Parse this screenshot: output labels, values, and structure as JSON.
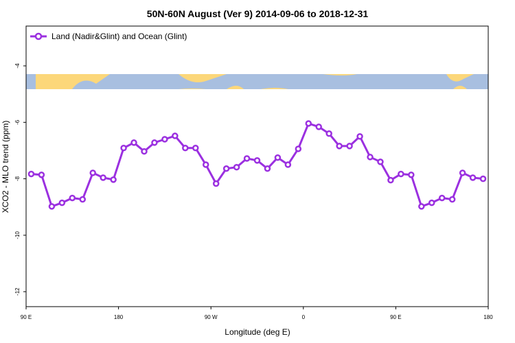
{
  "chart_data": {
    "type": "line",
    "title": "50N-60N August (Ver 9)   2014-09-06 to 2018-12-31",
    "x_label": "Longitude (deg E)",
    "y_label": "XCO2 - MLO trend (ppm)",
    "x": [
      95,
      105,
      115,
      125,
      135,
      145,
      155,
      165,
      175,
      185,
      195,
      205,
      215,
      225,
      235,
      245,
      255,
      265,
      275,
      285,
      295,
      305,
      315,
      325,
      335,
      345,
      355,
      365,
      375,
      385,
      395,
      405,
      415,
      425,
      435,
      445,
      455,
      465,
      475,
      485,
      495,
      505,
      515,
      525,
      535
    ],
    "series": [
      {
        "name": "Land (Nadir&Glint) and Ocean (Glint)",
        "color": "#9b30e0",
        "values": [
          -7.83,
          -7.86,
          -8.98,
          -8.85,
          -8.68,
          -8.73,
          -7.79,
          -7.96,
          -8.03,
          -6.91,
          -6.72,
          -7.03,
          -6.72,
          -6.6,
          -6.48,
          -6.91,
          -6.91,
          -7.5,
          -8.17,
          -7.64,
          -7.59,
          -7.28,
          -7.35,
          -7.64,
          -7.25,
          -7.5,
          -6.94,
          -6.04,
          -6.16,
          -6.4,
          -6.84,
          -6.84,
          -6.5,
          -7.23,
          -7.4,
          -8.05,
          -7.83,
          -7.86,
          -8.98,
          -8.85,
          -8.68,
          -8.73,
          -7.79,
          -7.96,
          -8.0
        ]
      }
    ],
    "xlim": [
      90,
      540
    ],
    "xticks": [
      {
        "value": 90,
        "label": "90 E"
      },
      180,
      {
        "value": 270,
        "label": "90 W"
      },
      {
        "value": 360,
        "label": "0"
      },
      {
        "value": 450,
        "label": "90 E"
      },
      {
        "value": 540,
        "label": "180"
      }
    ],
    "ylim": [
      -12.53,
      -2.59
    ],
    "yticks": [
      -12,
      -10,
      -8,
      -6,
      -4
    ],
    "legend": "top-left"
  }
}
